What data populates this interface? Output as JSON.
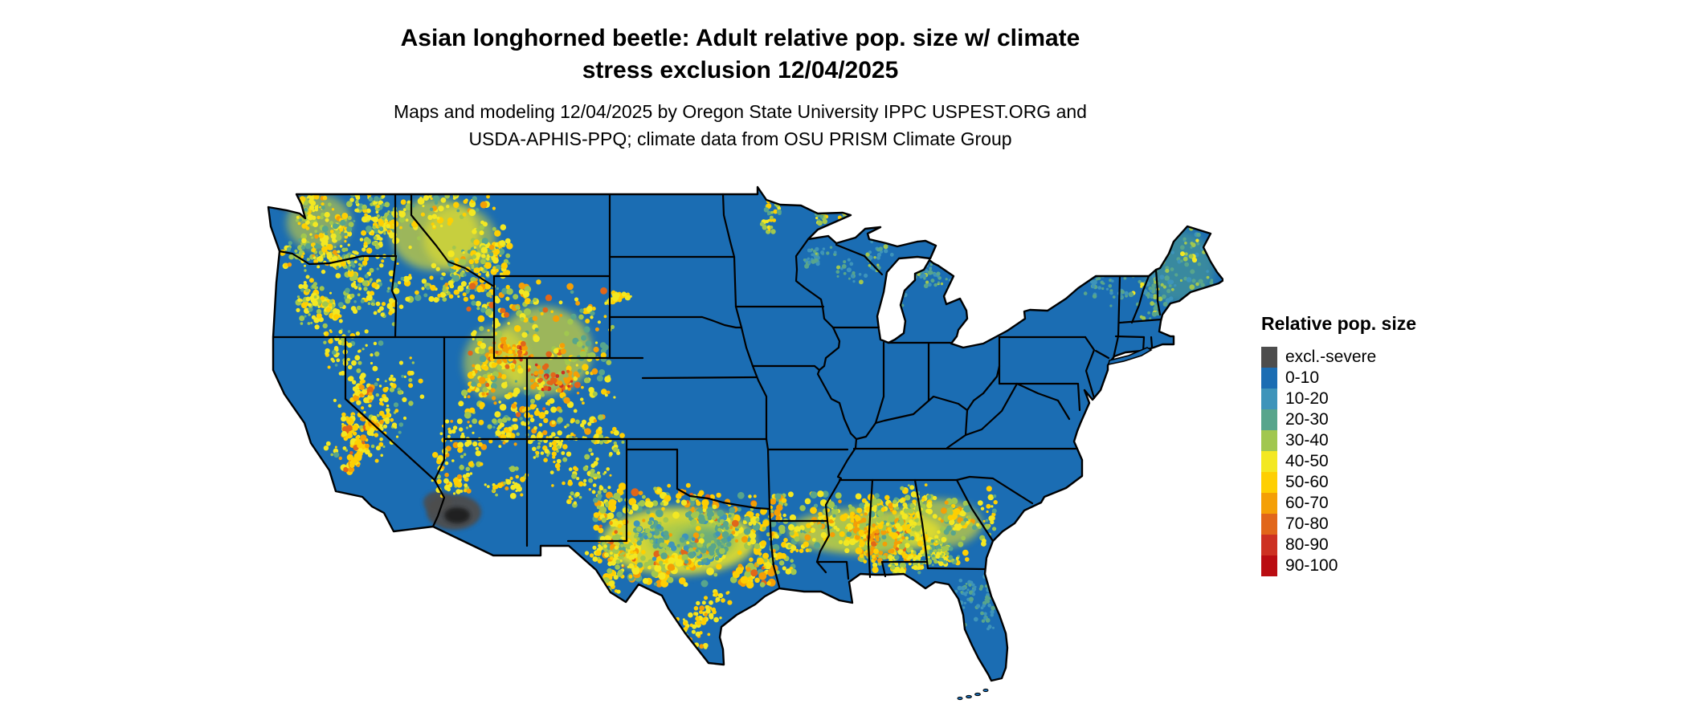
{
  "title": {
    "line1": "Asian longhorned beetle: Adult relative pop. size w/ climate",
    "line2": "stress exclusion 12/04/2025"
  },
  "subtitle": {
    "line1": "Maps and modeling 12/04/2025 by Oregon State University IPPC USPEST.ORG and",
    "line2": "USDA-APHIS-PPQ; climate data from OSU PRISM Climate Group"
  },
  "legend": {
    "title": "Relative pop. size",
    "entries": [
      {
        "label": "excl.-severe",
        "color": "#4d4d4d"
      },
      {
        "label": "0-10",
        "color": "#1b6db3"
      },
      {
        "label": "10-20",
        "color": "#3e94ba"
      },
      {
        "label": "20-30",
        "color": "#58a58c"
      },
      {
        "label": "30-40",
        "color": "#a1c74f"
      },
      {
        "label": "40-50",
        "color": "#f3e822"
      },
      {
        "label": "50-60",
        "color": "#fecf02"
      },
      {
        "label": "60-70",
        "color": "#f49f06"
      },
      {
        "label": "70-80",
        "color": "#e1661a"
      },
      {
        "label": "80-90",
        "color": "#cd3122"
      },
      {
        "label": "90-100",
        "color": "#ba0d12"
      }
    ]
  },
  "map": {
    "region": "Contiguous United States",
    "border_color": "#000000",
    "water_color": "#ffffff"
  }
}
